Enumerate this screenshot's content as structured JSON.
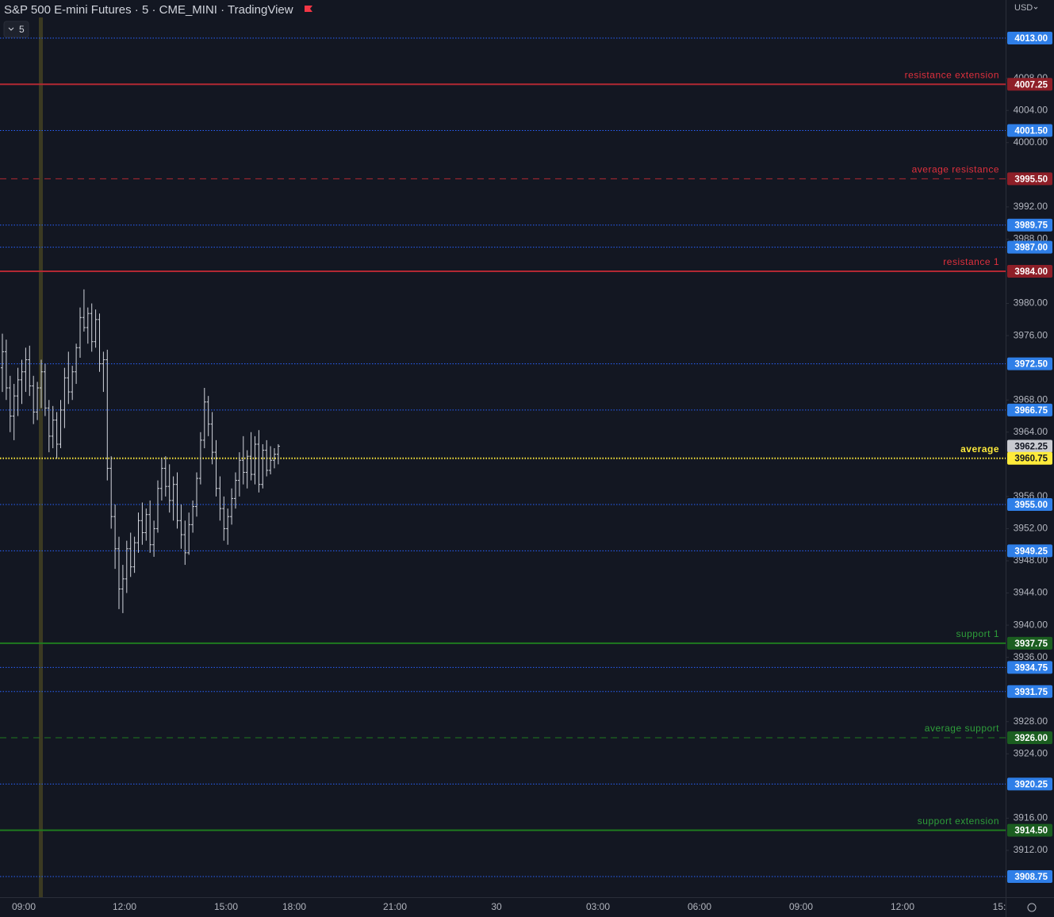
{
  "chart_data": {
    "type": "ohlc",
    "title": "S&P 500 E-mini Futures · 5 · CME_MINI · TradingView",
    "interval": "5",
    "currency": "USD",
    "ylim": [
      3906.18,
      4017.73
    ],
    "yticks": [
      {
        "value": 4008,
        "label": "4008.00"
      },
      {
        "value": 4004,
        "label": "4004.00"
      },
      {
        "value": 4000,
        "label": "4000.00"
      },
      {
        "value": 3992,
        "label": "3992.00"
      },
      {
        "value": 3988,
        "label": "3988.00"
      },
      {
        "value": 3980,
        "label": "3980.00"
      },
      {
        "value": 3976,
        "label": "3976.00"
      },
      {
        "value": 3968,
        "label": "3968.00"
      },
      {
        "value": 3964,
        "label": "3964.00"
      },
      {
        "value": 3956,
        "label": "3956.00"
      },
      {
        "value": 3952,
        "label": "3952.00"
      },
      {
        "value": 3948,
        "label": "3948.00"
      },
      {
        "value": 3944,
        "label": "3944.00"
      },
      {
        "value": 3940,
        "label": "3940.00"
      },
      {
        "value": 3936,
        "label": "3936.00"
      },
      {
        "value": 3928,
        "label": "3928.00"
      },
      {
        "value": 3924,
        "label": "3924.00"
      },
      {
        "value": 3916,
        "label": "3916.00"
      },
      {
        "value": 3912,
        "label": "3912.00"
      }
    ],
    "x_labels": [
      "09:00",
      "12:00",
      "15:00",
      "18:00",
      "21:00",
      "30",
      "03:00",
      "06:00",
      "09:00",
      "12:00",
      "15:"
    ],
    "color": "#d1d4dc",
    "ohlc": [
      [
        3972,
        3976.25,
        3969,
        3974
      ],
      [
        3974,
        3975.5,
        3968,
        3969.5
      ],
      [
        3969.5,
        3971,
        3964,
        3966
      ],
      [
        3966,
        3970,
        3963,
        3968.5
      ],
      [
        3968.5,
        3972,
        3966,
        3970.5
      ],
      [
        3970.5,
        3973,
        3967.5,
        3971.5
      ],
      [
        3971.5,
        3974.5,
        3969,
        3973
      ],
      [
        3973,
        3974.75,
        3968.5,
        3969.75
      ],
      [
        3969.75,
        3971,
        3965,
        3966.5
      ],
      [
        3966.5,
        3970.25,
        3965.5,
        3969.5
      ],
      [
        3969.5,
        3973,
        3967,
        3971.5
      ],
      [
        3971.5,
        3972.5,
        3966,
        3967
      ],
      [
        3967,
        3968,
        3961.5,
        3963.5
      ],
      [
        3963.5,
        3967.25,
        3962,
        3965.5
      ],
      [
        3965.5,
        3966.5,
        3960.75,
        3962.5
      ],
      [
        3962.5,
        3968,
        3962,
        3966.75
      ],
      [
        3966.75,
        3972,
        3964.5,
        3970.75
      ],
      [
        3970.75,
        3974,
        3967.5,
        3969
      ],
      [
        3969,
        3972.25,
        3968,
        3971.5
      ],
      [
        3971.5,
        3975,
        3970,
        3974.5
      ],
      [
        3974.5,
        3979.5,
        3973.25,
        3978.25
      ],
      [
        3978.25,
        3981.75,
        3976.5,
        3977
      ],
      [
        3977,
        3979.5,
        3975,
        3978.75
      ],
      [
        3978.75,
        3980,
        3974,
        3975.25
      ],
      [
        3975.25,
        3979.25,
        3974.5,
        3978
      ],
      [
        3978,
        3978.75,
        3971.5,
        3972.5
      ],
      [
        3972.5,
        3974,
        3969,
        3973
      ],
      [
        3973,
        3974.25,
        3958,
        3959.5
      ],
      [
        3959.5,
        3961,
        3952,
        3953.5
      ],
      [
        3953.5,
        3955,
        3947,
        3949.5
      ],
      [
        3949.5,
        3951,
        3942,
        3944.5
      ],
      [
        3944.5,
        3947.5,
        3941.5,
        3945.75
      ],
      [
        3945.75,
        3950.5,
        3944,
        3949.5
      ],
      [
        3949.5,
        3951.5,
        3946,
        3947.25
      ],
      [
        3947.25,
        3951,
        3946.5,
        3950.25
      ],
      [
        3950.25,
        3954,
        3949,
        3953
      ],
      [
        3953,
        3955.25,
        3950,
        3951.5
      ],
      [
        3951.5,
        3954.5,
        3950.5,
        3953.75
      ],
      [
        3953.75,
        3955.5,
        3949,
        3950
      ],
      [
        3950,
        3953,
        3948.5,
        3952
      ],
      [
        3952,
        3958,
        3951.5,
        3957
      ],
      [
        3957,
        3960.75,
        3955.5,
        3959.5
      ],
      [
        3959.5,
        3961,
        3956,
        3957.25
      ],
      [
        3957.25,
        3960,
        3954,
        3955.5
      ],
      [
        3955.5,
        3958.5,
        3953,
        3957.5
      ],
      [
        3957.5,
        3959,
        3952,
        3953
      ],
      [
        3953,
        3955,
        3949.5,
        3951.25
      ],
      [
        3951.25,
        3953,
        3947.5,
        3949
      ],
      [
        3949,
        3954,
        3948.75,
        3952.5
      ],
      [
        3952.5,
        3955.5,
        3951.5,
        3954.75
      ],
      [
        3954.75,
        3959,
        3953.5,
        3958.25
      ],
      [
        3958.25,
        3964,
        3957.5,
        3963
      ],
      [
        3963,
        3969.5,
        3962,
        3967.75
      ],
      [
        3967.75,
        3968.5,
        3963.5,
        3965
      ],
      [
        3965,
        3966.5,
        3960,
        3961.5
      ],
      [
        3961.5,
        3963,
        3956,
        3957
      ],
      [
        3957,
        3958.5,
        3953,
        3954.5
      ],
      [
        3954.5,
        3956,
        3950.5,
        3952
      ],
      [
        3952,
        3954.5,
        3950,
        3953.5
      ],
      [
        3953.5,
        3957,
        3952.5,
        3955.75
      ],
      [
        3955.75,
        3959,
        3954.5,
        3958
      ],
      [
        3958,
        3961.5,
        3956,
        3960.5
      ],
      [
        3960.5,
        3963.5,
        3957.5,
        3959
      ],
      [
        3959,
        3961.75,
        3957,
        3961
      ],
      [
        3961,
        3964,
        3958,
        3958.75
      ],
      [
        3958.75,
        3963.5,
        3957.5,
        3962.5
      ],
      [
        3962.5,
        3964.25,
        3956.5,
        3957.5
      ],
      [
        3957.5,
        3962.5,
        3957,
        3961.75
      ],
      [
        3961.75,
        3963,
        3958.5,
        3959.25
      ],
      [
        3959.25,
        3962.25,
        3958.75,
        3960.5
      ],
      [
        3960.5,
        3962,
        3959.5,
        3961.25
      ],
      [
        3961.25,
        3962.5,
        3960,
        3962.25
      ]
    ],
    "levels": [
      {
        "value": 4013,
        "label": "4013.00",
        "color": "#2962ff",
        "tag_color": "#2f7fe8",
        "style": "dotted"
      },
      {
        "value": 4007.25,
        "label": "4007.25",
        "name": "resistance extension",
        "color": "#b22833",
        "tag_color": "#8e1f28",
        "style": "solid"
      },
      {
        "value": 4001.5,
        "label": "4001.50",
        "color": "#2962ff",
        "tag_color": "#2f7fe8",
        "style": "dotted"
      },
      {
        "value": 3995.5,
        "label": "3995.50",
        "name": "average resistance",
        "color": "#b22833",
        "tag_color": "#8e1f28",
        "style": "dashed"
      },
      {
        "value": 3989.75,
        "label": "3989.75",
        "color": "#2962ff",
        "tag_color": "#2f7fe8",
        "style": "dotted"
      },
      {
        "value": 3987,
        "label": "3987.00",
        "color": "#2962ff",
        "tag_color": "#2f7fe8",
        "style": "dotted"
      },
      {
        "value": 3984,
        "label": "3984.00",
        "name": "resistance 1",
        "color": "#b22833",
        "tag_color": "#8e1f28",
        "style": "solid"
      },
      {
        "value": 3972.5,
        "label": "3972.50",
        "color": "#2962ff",
        "tag_color": "#2f7fe8",
        "style": "dotted"
      },
      {
        "value": 3966.75,
        "label": "3966.75",
        "color": "#2962ff",
        "tag_color": "#2f7fe8",
        "style": "dotted"
      },
      {
        "value": 3960.75,
        "label": "3960.75",
        "name": "average",
        "color": "#ffeb3b",
        "tag_color": "#ffeb3b",
        "style": "dotted"
      },
      {
        "value": 3955,
        "label": "3955.00",
        "color": "#2962ff",
        "tag_color": "#2f7fe8",
        "style": "dotted"
      },
      {
        "value": 3949.25,
        "label": "3949.25",
        "color": "#2962ff",
        "tag_color": "#2f7fe8",
        "style": "dotted"
      },
      {
        "value": 3937.75,
        "label": "3937.75",
        "name": "support 1",
        "color": "#1f7a1f",
        "tag_color": "#1b5e20",
        "style": "solid"
      },
      {
        "value": 3934.75,
        "label": "3934.75",
        "color": "#2962ff",
        "tag_color": "#2f7fe8",
        "style": "dotted"
      },
      {
        "value": 3931.75,
        "label": "3931.75",
        "color": "#2962ff",
        "tag_color": "#2f7fe8",
        "style": "dotted"
      },
      {
        "value": 3926,
        "label": "3926.00",
        "name": "average support",
        "color": "#1f7a1f",
        "tag_color": "#1b5e20",
        "style": "dashed"
      },
      {
        "value": 3920.25,
        "label": "3920.25",
        "color": "#2962ff",
        "tag_color": "#2f7fe8",
        "style": "dotted"
      },
      {
        "value": 3914.5,
        "label": "3914.50",
        "name": "support extension",
        "color": "#1f7a1f",
        "tag_color": "#1b5e20",
        "style": "solid"
      },
      {
        "value": 3908.75,
        "label": "3908.75",
        "color": "#2962ff",
        "tag_color": "#2f7fe8",
        "style": "dotted"
      }
    ],
    "last_price": {
      "value": 3962.25,
      "label": "3962.25"
    }
  }
}
